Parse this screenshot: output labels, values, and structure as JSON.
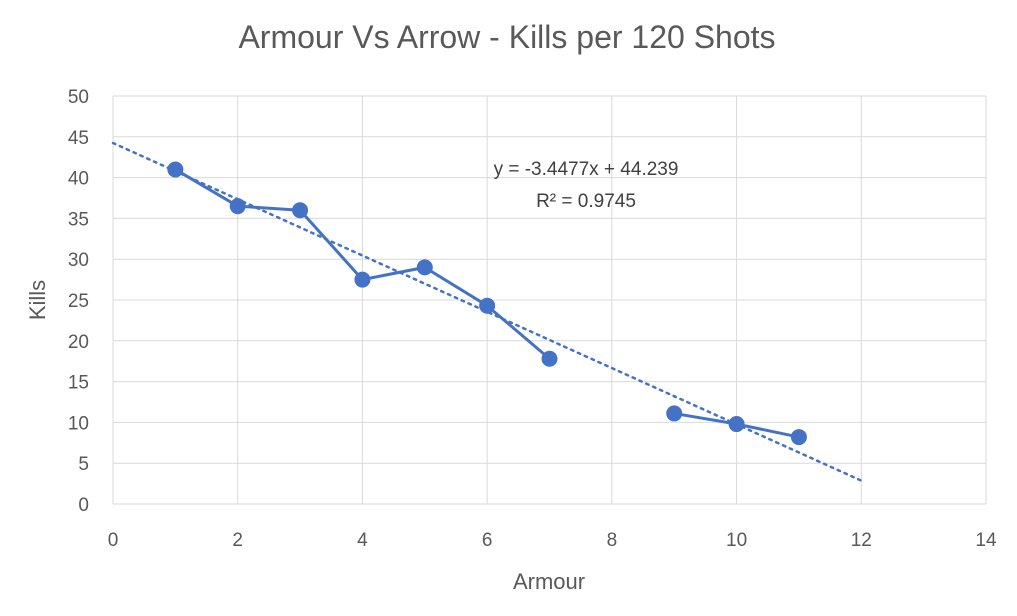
{
  "chart_data": {
    "type": "scatter",
    "title": "Armour Vs Arrow - Kills per 120 Shots",
    "xlabel": "Armour",
    "ylabel": "Kills",
    "xlim": [
      0,
      14
    ],
    "ylim": [
      0,
      50
    ],
    "xticks": [
      0,
      2,
      4,
      6,
      8,
      10,
      12,
      14
    ],
    "yticks": [
      0,
      5,
      10,
      15,
      20,
      25,
      30,
      35,
      40,
      45,
      50
    ],
    "grid": true,
    "legend": "none",
    "series": [
      {
        "color": "#4472C4",
        "marker": "circle",
        "line": "solid",
        "segments": [
          [
            {
              "x": 1,
              "y": 41
            },
            {
              "x": 2,
              "y": 36.5
            },
            {
              "x": 3,
              "y": 36
            },
            {
              "x": 4,
              "y": 27.5
            },
            {
              "x": 5,
              "y": 29
            },
            {
              "x": 6,
              "y": 24.3
            },
            {
              "x": 7,
              "y": 17.8
            }
          ],
          [
            {
              "x": 9,
              "y": 11.1
            },
            {
              "x": 10,
              "y": 9.8
            },
            {
              "x": 11,
              "y": 8.2
            }
          ]
        ]
      }
    ],
    "trendline": {
      "type": "linear",
      "slope": -3.4477,
      "intercept": 44.239,
      "x_range": [
        0,
        12
      ],
      "style": "dotted",
      "color": "#4472C4",
      "equation": "y = -3.4477x + 44.239",
      "r2": "R² = 0.9745"
    }
  }
}
